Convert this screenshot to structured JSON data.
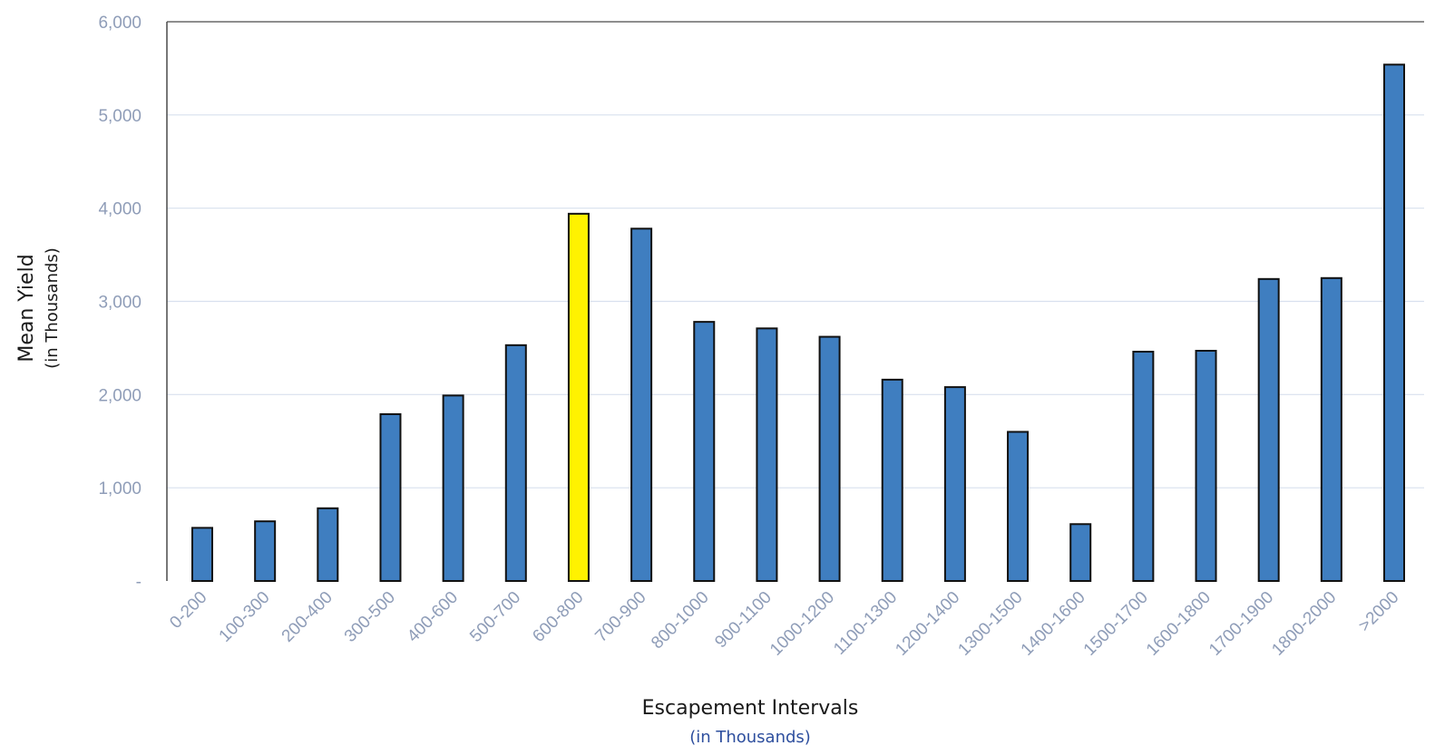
{
  "chart_data": {
    "type": "bar",
    "title": "",
    "xlabel": "Escapement Intervals",
    "xlabel_sub": "(in Thousands)",
    "ylabel": "Mean Yield",
    "ylabel_sub": "(in Thousands)",
    "ylim": [
      0,
      6000
    ],
    "yticks": [
      0,
      1000,
      2000,
      3000,
      4000,
      5000,
      6000
    ],
    "ytick_labels": [
      "-",
      "1,000",
      "2,000",
      "3,000",
      "4,000",
      "5,000",
      "6,000"
    ],
    "grid": true,
    "legend": "none",
    "categories": [
      "0-200",
      "100-300",
      "200-400",
      "300-500",
      "400-600",
      "500-700",
      "600-800",
      "700-900",
      "800-1000",
      "900-1100",
      "1000-1200",
      "1100-1300",
      "1200-1400",
      "1300-1500",
      "1400-1600",
      "1500-1700",
      "1600-1800",
      "1700-1900",
      "1800-2000",
      ">2000"
    ],
    "values": [
      570,
      640,
      780,
      1790,
      1990,
      2530,
      3940,
      3780,
      2780,
      2710,
      2620,
      2160,
      2080,
      1600,
      610,
      2460,
      2470,
      3240,
      3250,
      5540
    ],
    "highlight_index": 6,
    "colors": {
      "bar": "#3f7ec0",
      "highlight": "#fff200",
      "bar_edge": "#111111",
      "grid": "#d8e0ee",
      "axis": "#4a4a4a",
      "tick_text": "#8f9db8",
      "subtitle": "#2e4f9e"
    }
  }
}
